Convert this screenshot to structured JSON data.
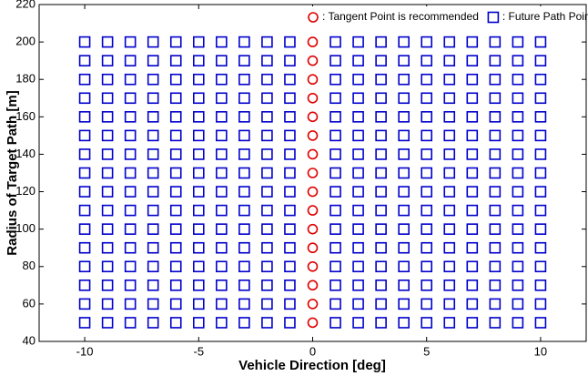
{
  "chart_data": {
    "type": "scatter",
    "xlabel": "Vehicle Direction [deg]",
    "ylabel": "Radius of Target Path [m]",
    "xlim": [
      -12,
      12
    ],
    "xticks": [
      -10,
      -5,
      0,
      5,
      10
    ],
    "ylim": [
      40,
      220
    ],
    "yticks": [
      40,
      60,
      80,
      100,
      120,
      140,
      160,
      180,
      200,
      220
    ],
    "legend": "upper right",
    "series": [
      {
        "name": ": Tangent Point is recommended",
        "color": "#e00000",
        "marker": "circle",
        "x": [
          0,
          0,
          0,
          0,
          0,
          0,
          0,
          0,
          0,
          0,
          0,
          0,
          0,
          0,
          0,
          0
        ],
        "y": [
          50,
          60,
          70,
          80,
          90,
          100,
          110,
          120,
          130,
          140,
          150,
          160,
          170,
          180,
          190,
          200
        ]
      },
      {
        "name": ": Future Path Point is recommended",
        "color": "#0000cc",
        "marker": "square",
        "x": [
          -10,
          -9,
          -8,
          -7,
          -6,
          -5,
          -4,
          -3,
          -2,
          -1,
          1,
          2,
          3,
          4,
          5,
          6,
          7,
          8,
          9,
          10,
          -10,
          -9,
          -8,
          -7,
          -6,
          -5,
          -4,
          -3,
          -2,
          -1,
          1,
          2,
          3,
          4,
          5,
          6,
          7,
          8,
          9,
          10,
          -10,
          -9,
          -8,
          -7,
          -6,
          -5,
          -4,
          -3,
          -2,
          -1,
          1,
          2,
          3,
          4,
          5,
          6,
          7,
          8,
          9,
          10,
          -10,
          -9,
          -8,
          -7,
          -6,
          -5,
          -4,
          -3,
          -2,
          -1,
          1,
          2,
          3,
          4,
          5,
          6,
          7,
          8,
          9,
          10,
          -10,
          -9,
          -8,
          -7,
          -6,
          -5,
          -4,
          -3,
          -2,
          -1,
          1,
          2,
          3,
          4,
          5,
          6,
          7,
          8,
          9,
          10,
          -10,
          -9,
          -8,
          -7,
          -6,
          -5,
          -4,
          -3,
          -2,
          -1,
          1,
          2,
          3,
          4,
          5,
          6,
          7,
          8,
          9,
          10,
          -10,
          -9,
          -8,
          -7,
          -6,
          -5,
          -4,
          -3,
          -2,
          -1,
          1,
          2,
          3,
          4,
          5,
          6,
          7,
          8,
          9,
          10,
          -10,
          -9,
          -8,
          -7,
          -6,
          -5,
          -4,
          -3,
          -2,
          -1,
          1,
          2,
          3,
          4,
          5,
          6,
          7,
          8,
          9,
          10,
          -10,
          -9,
          -8,
          -7,
          -6,
          -5,
          -4,
          -3,
          -2,
          -1,
          1,
          2,
          3,
          4,
          5,
          6,
          7,
          8,
          9,
          10,
          -10,
          -9,
          -8,
          -7,
          -6,
          -5,
          -4,
          -3,
          -2,
          -1,
          1,
          2,
          3,
          4,
          5,
          6,
          7,
          8,
          9,
          10,
          -10,
          -9,
          -8,
          -7,
          -6,
          -5,
          -4,
          -3,
          -2,
          -1,
          1,
          2,
          3,
          4,
          5,
          6,
          7,
          8,
          9,
          10,
          -10,
          -9,
          -8,
          -7,
          -6,
          -5,
          -4,
          -3,
          -2,
          -1,
          1,
          2,
          3,
          4,
          5,
          6,
          7,
          8,
          9,
          10,
          -10,
          -9,
          -8,
          -7,
          -6,
          -5,
          -4,
          -3,
          -2,
          -1,
          1,
          2,
          3,
          4,
          5,
          6,
          7,
          8,
          9,
          10,
          -10,
          -9,
          -8,
          -7,
          -6,
          -5,
          -4,
          -3,
          -2,
          -1,
          1,
          2,
          3,
          4,
          5,
          6,
          7,
          8,
          9,
          10,
          -10,
          -9,
          -8,
          -7,
          -6,
          -5,
          -4,
          -3,
          -2,
          -1,
          1,
          2,
          3,
          4,
          5,
          6,
          7,
          8,
          9,
          10,
          -10,
          -9,
          -8,
          -7,
          -6,
          -5,
          -4,
          -3,
          -2,
          -1,
          1,
          2,
          3,
          4,
          5,
          6,
          7,
          8,
          9,
          10
        ],
        "y": [
          50,
          50,
          50,
          50,
          50,
          50,
          50,
          50,
          50,
          50,
          50,
          50,
          50,
          50,
          50,
          50,
          50,
          50,
          50,
          50,
          60,
          60,
          60,
          60,
          60,
          60,
          60,
          60,
          60,
          60,
          60,
          60,
          60,
          60,
          60,
          60,
          60,
          60,
          60,
          60,
          70,
          70,
          70,
          70,
          70,
          70,
          70,
          70,
          70,
          70,
          70,
          70,
          70,
          70,
          70,
          70,
          70,
          70,
          70,
          70,
          80,
          80,
          80,
          80,
          80,
          80,
          80,
          80,
          80,
          80,
          80,
          80,
          80,
          80,
          80,
          80,
          80,
          80,
          80,
          80,
          90,
          90,
          90,
          90,
          90,
          90,
          90,
          90,
          90,
          90,
          90,
          90,
          90,
          90,
          90,
          90,
          90,
          90,
          90,
          90,
          100,
          100,
          100,
          100,
          100,
          100,
          100,
          100,
          100,
          100,
          100,
          100,
          100,
          100,
          100,
          100,
          100,
          100,
          100,
          100,
          110,
          110,
          110,
          110,
          110,
          110,
          110,
          110,
          110,
          110,
          110,
          110,
          110,
          110,
          110,
          110,
          110,
          110,
          110,
          110,
          120,
          120,
          120,
          120,
          120,
          120,
          120,
          120,
          120,
          120,
          120,
          120,
          120,
          120,
          120,
          120,
          120,
          120,
          120,
          120,
          130,
          130,
          130,
          130,
          130,
          130,
          130,
          130,
          130,
          130,
          130,
          130,
          130,
          130,
          130,
          130,
          130,
          130,
          130,
          130,
          140,
          140,
          140,
          140,
          140,
          140,
          140,
          140,
          140,
          140,
          140,
          140,
          140,
          140,
          140,
          140,
          140,
          140,
          140,
          140,
          150,
          150,
          150,
          150,
          150,
          150,
          150,
          150,
          150,
          150,
          150,
          150,
          150,
          150,
          150,
          150,
          150,
          150,
          150,
          150,
          160,
          160,
          160,
          160,
          160,
          160,
          160,
          160,
          160,
          160,
          160,
          160,
          160,
          160,
          160,
          160,
          160,
          160,
          160,
          160,
          170,
          170,
          170,
          170,
          170,
          170,
          170,
          170,
          170,
          170,
          170,
          170,
          170,
          170,
          170,
          170,
          170,
          170,
          170,
          170,
          180,
          180,
          180,
          180,
          180,
          180,
          180,
          180,
          180,
          180,
          180,
          180,
          180,
          180,
          180,
          180,
          180,
          180,
          180,
          180,
          190,
          190,
          190,
          190,
          190,
          190,
          190,
          190,
          190,
          190,
          190,
          190,
          190,
          190,
          190,
          190,
          190,
          190,
          190,
          190,
          200,
          200,
          200,
          200,
          200,
          200,
          200,
          200,
          200,
          200,
          200,
          200,
          200,
          200,
          200,
          200,
          200,
          200,
          200,
          200
        ]
      }
    ]
  }
}
